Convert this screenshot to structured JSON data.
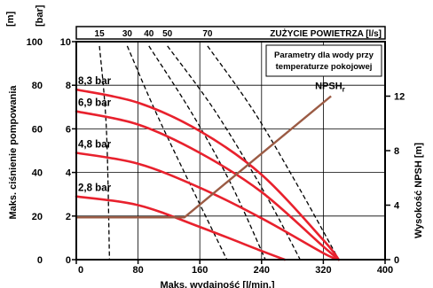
{
  "chart_data": {
    "type": "line",
    "x_axis": {
      "label": "Maks. wydajność [l/min.]",
      "range": [
        0,
        400
      ],
      "ticks": [
        0,
        80,
        160,
        240,
        320,
        400
      ],
      "tick_labels": [
        "0",
        "80",
        "160",
        "240",
        "320",
        "400"
      ]
    },
    "y_axis_left_m": {
      "label": "Maks. ciśnienie pompowania",
      "unit": "[m]",
      "range": [
        0,
        100
      ],
      "ticks": [
        0,
        20,
        40,
        60,
        80,
        100
      ],
      "tick_labels": [
        "0",
        "20",
        "40",
        "60",
        "80",
        "100"
      ]
    },
    "y_axis_left_bar": {
      "unit": "[bar]",
      "range": [
        0,
        10
      ],
      "ticks": [
        0,
        2,
        4,
        6,
        8,
        10
      ],
      "tick_labels": [
        "0",
        "2",
        "4",
        "6",
        "8",
        "10"
      ]
    },
    "y_axis_right": {
      "label": "Wysokość NPSH [m]",
      "range": [
        0,
        16
      ],
      "ticks": [
        0,
        4,
        8,
        12
      ],
      "tick_labels": [
        "0",
        "4",
        "8",
        "12"
      ]
    },
    "air_axis": {
      "title": "ZUŻYCIE POWIETRZA [l/s]",
      "ticks": [
        15,
        30,
        40,
        50,
        70
      ],
      "tick_labels": [
        "15",
        "30",
        "40",
        "50",
        "70"
      ]
    },
    "annotation": [
      "Parametry dla wody przy",
      "temperaturze pokojowej"
    ],
    "grid": true,
    "series": [
      {
        "name": "8,3 bar",
        "color": "#e8212d",
        "x": [
          0,
          80,
          160,
          240,
          320,
          340
        ],
        "y": [
          78,
          72,
          59,
          39,
          9,
          0
        ]
      },
      {
        "name": "6,9 bar",
        "color": "#e8212d",
        "x": [
          0,
          80,
          160,
          240,
          320,
          340
        ],
        "y": [
          68,
          62,
          49,
          31,
          6,
          0
        ]
      },
      {
        "name": "4,8 bar",
        "color": "#e8212d",
        "x": [
          0,
          80,
          160,
          240,
          320,
          340
        ],
        "y": [
          49,
          44,
          33,
          19,
          3,
          0
        ]
      },
      {
        "name": "2,8 bar",
        "color": "#e8212d",
        "x": [
          0,
          80,
          160,
          240,
          270
        ],
        "y": [
          29,
          25,
          15,
          4,
          0
        ]
      }
    ],
    "npsh_curve": {
      "name": "NPSH",
      "name_sub": "r",
      "color": "#9b5b44",
      "x": [
        0,
        140,
        330
      ],
      "y": [
        3.1,
        3.1,
        12
      ]
    },
    "air_curves": [
      {
        "label": "15",
        "color": "#000000",
        "x": [
          30,
          39,
          43
        ],
        "y": [
          98,
          60,
          0
        ]
      },
      {
        "label": "30",
        "color": "#000000",
        "x": [
          66,
          100,
          140,
          195
        ],
        "y": [
          98,
          70,
          40,
          0
        ]
      },
      {
        "label": "40",
        "color": "#000000",
        "x": [
          94,
          150,
          200,
          245
        ],
        "y": [
          98,
          67,
          35,
          0
        ]
      },
      {
        "label": "50",
        "color": "#000000",
        "x": [
          118,
          180,
          245,
          290
        ],
        "y": [
          98,
          68,
          30,
          0
        ]
      },
      {
        "label": "70",
        "color": "#000000",
        "x": [
          170,
          230,
          290,
          340
        ],
        "y": [
          98,
          68,
          32,
          0
        ]
      }
    ]
  }
}
